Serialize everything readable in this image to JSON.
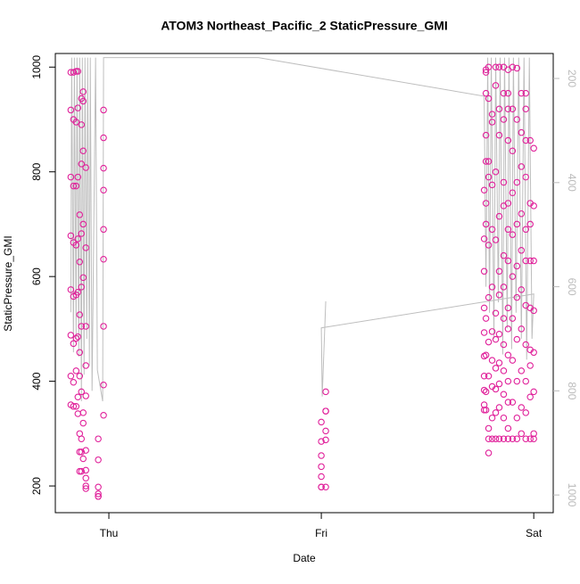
{
  "chart_data": {
    "type": "scatter",
    "title": "ATOM3 Northeast_Pacific_2 StaticPressure_GMI",
    "x_label": "Date",
    "y_label": "StaticPressure_GMI",
    "xlim": [
      -6.05,
      50.2
    ],
    "xticks": [
      {
        "value": 0,
        "label": "Thu"
      },
      {
        "value": 24,
        "label": "Fri"
      },
      {
        "value": 48,
        "label": "Sat"
      }
    ],
    "ylim": [
      149,
      1026
    ],
    "yticks": [
      200,
      400,
      600,
      800,
      1000
    ],
    "y2lim": [
      1034,
      152
    ],
    "y2ticks": [
      200,
      400,
      600,
      800,
      1000
    ],
    "series": [
      {
        "type": "scatter",
        "color": "#e0209a",
        "x": [
          -4.3,
          -4.3,
          -4.3,
          -4.3,
          -4.3,
          -4.3,
          -4.3,
          -4.3,
          -4.0,
          -4.0,
          -4.0,
          -4.0,
          -4.0,
          -4.0,
          -4.0,
          -4.0,
          -3.7,
          -3.7,
          -3.7,
          -3.7,
          -3.7,
          -3.7,
          -3.7,
          -3.7,
          -3.5,
          -3.5,
          -3.5,
          -3.5,
          -3.5,
          -3.5,
          -3.5,
          -3.5,
          -3.3,
          -3.3,
          -3.3,
          -3.3,
          -3.3,
          -3.3,
          -3.3,
          -3.3,
          -3.1,
          -3.1,
          -3.1,
          -3.1,
          -3.1,
          -3.1,
          -3.1,
          -3.1,
          -3.1,
          -3.1,
          -2.9,
          -2.9,
          -2.9,
          -2.9,
          -2.9,
          -2.9,
          -2.9,
          -2.9,
          -2.6,
          -2.6,
          -2.6,
          -2.6,
          -2.6,
          -2.6,
          -2.6,
          -2.6,
          -2.6,
          -2.6,
          -1.2,
          -1.2,
          -1.2,
          -1.2,
          -1.2,
          -1.2,
          -0.6,
          -0.6,
          -0.6,
          -0.6,
          -0.6,
          -0.6,
          -0.6,
          -0.6,
          -0.6,
          24.0,
          24.0,
          24.0,
          24.0,
          24.0,
          24.0,
          24.0,
          24.5,
          24.5,
          24.5,
          24.5,
          24.5,
          24.5,
          42.4,
          42.4,
          42.4,
          42.4,
          42.4,
          42.4,
          42.4,
          42.4,
          42.4,
          42.4,
          42.6,
          42.6,
          42.6,
          42.6,
          42.6,
          42.6,
          42.6,
          42.6,
          42.6,
          42.6,
          42.6,
          42.9,
          42.9,
          42.9,
          42.9,
          42.9,
          42.9,
          42.9,
          42.9,
          42.9,
          42.9,
          42.9,
          43.3,
          43.3,
          43.3,
          43.3,
          43.3,
          43.3,
          43.3,
          43.3,
          43.3,
          43.3,
          43.7,
          43.7,
          43.7,
          43.7,
          43.7,
          43.7,
          43.7,
          43.7,
          43.7,
          43.7,
          44.1,
          44.1,
          44.1,
          44.1,
          44.1,
          44.1,
          44.1,
          44.1,
          44.1,
          44.1,
          44.1,
          44.6,
          44.6,
          44.6,
          44.6,
          44.6,
          44.6,
          44.6,
          44.6,
          44.6,
          44.6,
          44.6,
          44.6,
          44.6,
          45.1,
          45.1,
          45.1,
          45.1,
          45.1,
          45.1,
          45.1,
          45.1,
          45.1,
          45.1,
          45.1,
          45.1,
          45.1,
          45.1,
          45.6,
          45.6,
          45.6,
          45.6,
          45.6,
          45.6,
          45.6,
          45.6,
          45.6,
          45.6,
          46.1,
          46.1,
          46.1,
          46.1,
          46.1,
          46.1,
          46.1,
          46.1,
          46.1,
          46.1,
          46.6,
          46.6,
          46.6,
          46.6,
          46.6,
          46.6,
          46.6,
          46.6,
          46.6,
          46.6,
          47.1,
          47.1,
          47.1,
          47.1,
          47.1,
          47.1,
          47.1,
          47.1,
          47.1,
          47.1,
          47.1,
          47.6,
          47.6,
          47.6,
          47.6,
          47.6,
          47.6,
          47.6,
          47.6,
          47.6,
          48.0,
          48.0,
          48.0,
          48.0,
          48.0,
          48.0,
          48.0,
          48.0
        ],
        "values": [
          355,
          410,
          488,
          575,
          678,
          790,
          918,
          990,
          352,
          398,
          472,
          562,
          665,
          773,
          900,
          990,
          352,
          420,
          482,
          565,
          660,
          773,
          895,
          992,
          338,
          370,
          485,
          570,
          672,
          790,
          922,
          992,
          300,
          265,
          228,
          410,
          455,
          527,
          628,
          718,
          290,
          265,
          228,
          380,
          505,
          580,
          682,
          815,
          890,
          940,
          320,
          340,
          252,
          598,
          700,
          840,
          953,
          935,
          230,
          200,
          195,
          215,
          268,
          372,
          430,
          505,
          655,
          808,
          180,
          180,
          198,
          185,
          250,
          290,
          393,
          505,
          633,
          690,
          765,
          807,
          865,
          918,
          335,
          198,
          198,
          218,
          237,
          258,
          285,
          322,
          198,
          288,
          305,
          343,
          343,
          380,
          765,
          672,
          610,
          540,
          493,
          448,
          410,
          383,
          355,
          345,
          990,
          995,
          870,
          740,
          950,
          820,
          700,
          520,
          450,
          380,
          345,
          1000,
          940,
          820,
          790,
          660,
          560,
          475,
          410,
          310,
          290,
          263,
          910,
          895,
          775,
          690,
          580,
          495,
          440,
          390,
          330,
          290,
          1000,
          965,
          800,
          670,
          530,
          480,
          425,
          385,
          340,
          290,
          1000,
          920,
          870,
          715,
          610,
          565,
          490,
          435,
          395,
          350,
          290,
          1000,
          950,
          900,
          780,
          735,
          640,
          580,
          520,
          470,
          420,
          375,
          330,
          290,
          995,
          950,
          920,
          860,
          740,
          690,
          630,
          540,
          500,
          450,
          400,
          360,
          310,
          290,
          1000,
          920,
          840,
          760,
          680,
          600,
          520,
          440,
          360,
          290,
          998,
          900,
          780,
          700,
          620,
          560,
          480,
          400,
          330,
          290,
          950,
          875,
          810,
          720,
          650,
          575,
          500,
          420,
          350,
          300,
          950,
          920,
          860,
          790,
          690,
          630,
          545,
          470,
          400,
          340,
          290,
          860,
          740,
          700,
          630,
          540,
          460,
          430,
          370,
          290,
          845,
          735,
          630,
          535,
          455,
          380,
          300,
          290
        ]
      },
      {
        "type": "line",
        "axis": "y2",
        "color": "#bebebe",
        "x": [
          -4.3,
          -4.2,
          -4.0,
          -3.9,
          -3.7,
          -3.6,
          -3.4,
          -3.3,
          -3.1,
          -3.0,
          -2.8,
          -2.7,
          -2.5,
          -2.4,
          -2.2,
          -2.1,
          -1.9,
          -1.5,
          -1.3,
          -0.7,
          -0.6,
          16.9,
          42.4,
          42.6,
          42.8,
          43.0,
          43.2,
          43.5,
          43.7,
          44.0,
          44.2,
          44.5,
          44.7,
          45.0,
          45.2,
          45.5,
          45.7,
          46.0,
          46.3,
          46.6,
          46.9,
          47.2,
          47.5,
          47.8,
          48.0,
          24.0,
          24.1,
          24.5
        ],
        "values": [
          649,
          160,
          726,
          160,
          700,
          160,
          734,
          160,
          820,
          160,
          769,
          160,
          700,
          160,
          752,
          160,
          800,
          160,
          760,
          820,
          160,
          160,
          234,
          600,
          160,
          650,
          160,
          700,
          160,
          630,
          160,
          730,
          160,
          680,
          160,
          720,
          160,
          650,
          160,
          700,
          160,
          740,
          160,
          700,
          614,
          679,
          811,
          628
        ]
      }
    ]
  }
}
